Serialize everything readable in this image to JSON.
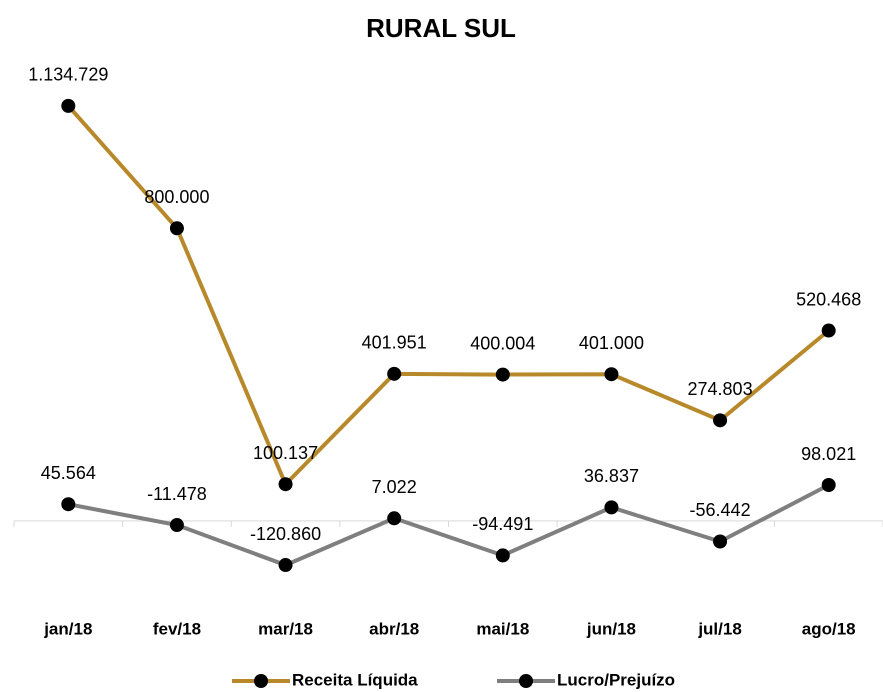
{
  "chart_data": {
    "type": "line",
    "title": "RURAL SUL",
    "categories": [
      "jan/18",
      "fev/18",
      "mar/18",
      "abr/18",
      "mai/18",
      "jun/18",
      "jul/18",
      "ago/18"
    ],
    "series": [
      {
        "name": "Receita Líquida",
        "color": "#b8892b",
        "values": [
          1134729,
          800000,
          100137,
          401951,
          400004,
          401000,
          274803,
          520468
        ],
        "value_labels": [
          "1.134.729",
          "800.000",
          "100.137",
          "401.951",
          "400.004",
          "401.000",
          "274.803",
          "520.468"
        ]
      },
      {
        "name": "Lucro/Prejuízo",
        "color": "#7f7f7f",
        "values": [
          45564,
          -11478,
          -120860,
          7022,
          -94491,
          36837,
          -56442,
          98021
        ],
        "value_labels": [
          "45.564",
          "-11.478",
          "-120.860",
          "7.022",
          "-94.491",
          "36.837",
          "-56.442",
          "98.021"
        ]
      }
    ],
    "marker_color": "#000000",
    "negative_label_color": "#ff0000",
    "ylim": [
      -200000,
      1200000
    ],
    "legend": "bottom"
  }
}
